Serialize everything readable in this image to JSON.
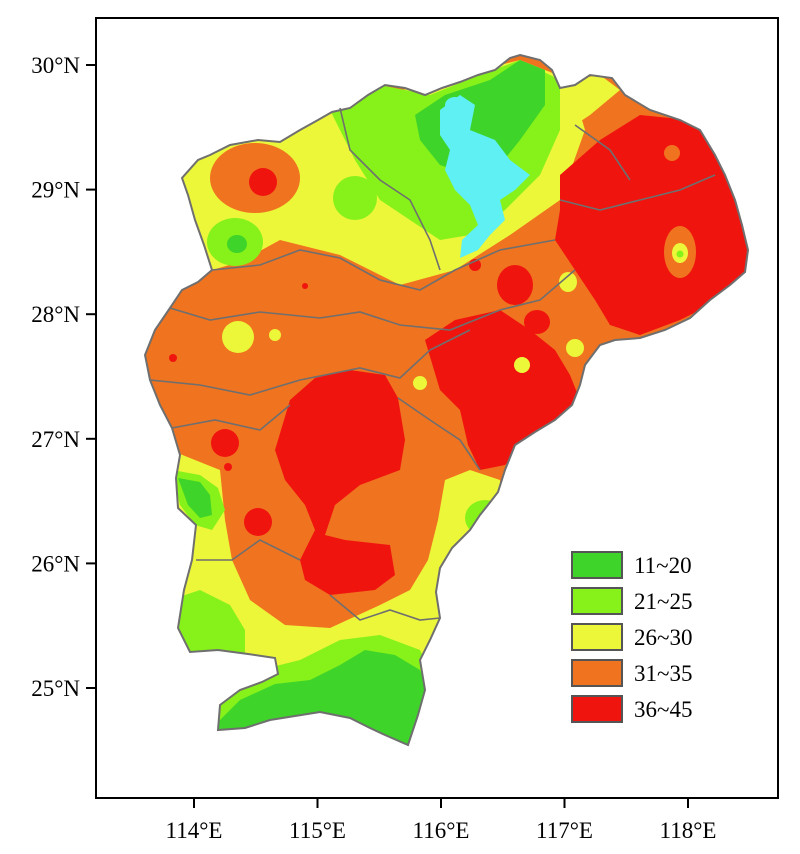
{
  "colors": {
    "class_11_20": "#3fd42a",
    "class_21_25": "#86f21a",
    "class_26_30": "#ecf73a",
    "class_31_35": "#f0731f",
    "class_36_45": "#f0140f",
    "water": "#5ef0f2",
    "boundary": "#6f6f6f",
    "frame": "#000000"
  },
  "axes": {
    "x_ticks": [
      {
        "value": 114,
        "label": "114°E"
      },
      {
        "value": 115,
        "label": "115°E"
      },
      {
        "value": 116,
        "label": "116°E"
      },
      {
        "value": 117,
        "label": "117°E"
      },
      {
        "value": 118,
        "label": "118°E"
      }
    ],
    "y_ticks": [
      {
        "value": 30,
        "label": "30°N"
      },
      {
        "value": 29,
        "label": "29°N"
      },
      {
        "value": 28,
        "label": "28°N"
      },
      {
        "value": 27,
        "label": "27°N"
      },
      {
        "value": 26,
        "label": "26°N"
      },
      {
        "value": 25,
        "label": "25°N"
      }
    ]
  },
  "legend": {
    "placement": "bottom-right",
    "items": [
      {
        "label": "11~20",
        "color": "#3fd42a"
      },
      {
        "label": "21~25",
        "color": "#86f21a"
      },
      {
        "label": "26~30",
        "color": "#ecf73a"
      },
      {
        "label": "31~35",
        "color": "#f0731f"
      },
      {
        "label": "36~45",
        "color": "#f0140f"
      }
    ]
  }
}
